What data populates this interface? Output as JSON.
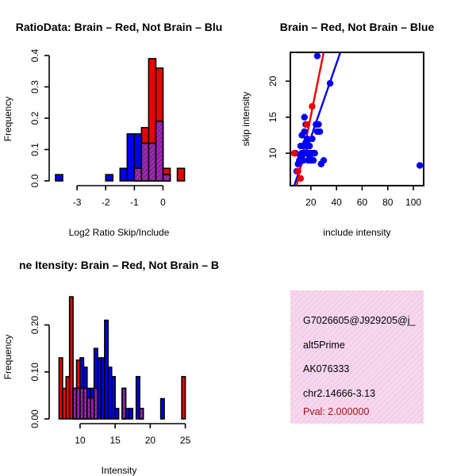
{
  "chart_data": [
    {
      "type": "bar",
      "title": "RatioData: Brain – Red, Not Brain – Blu",
      "xlabel": "Log2 Ratio Skip/Include",
      "ylabel": "Frequency",
      "xlim": [
        -3.75,
        0.9
      ],
      "ylim": [
        0,
        0.4
      ],
      "xticks": [
        "-3",
        "-2",
        "-1",
        "0"
      ],
      "yticks": [
        "0.0",
        "0.1",
        "0.2",
        "0.3",
        "0.4"
      ],
      "bin_width": 0.25,
      "series": [
        {
          "name": "Not Brain",
          "color": "#0000ee",
          "bars": [
            [
              -3.75,
              0.02
            ],
            [
              -2.0,
              0.02
            ],
            [
              -1.5,
              0.04
            ],
            [
              -1.25,
              0.15
            ],
            [
              -1.0,
              0.15
            ],
            [
              -0.75,
              0.12
            ],
            [
              -0.5,
              0.12
            ],
            [
              -0.25,
              0.19
            ],
            [
              0.0,
              0.02
            ]
          ]
        },
        {
          "name": "Brain",
          "color": "#ee0000",
          "bars": [
            [
              -1.0,
              0.04
            ],
            [
              -0.75,
              0.17
            ],
            [
              -0.5,
              0.39
            ],
            [
              -0.25,
              0.36
            ],
            [
              0.0,
              0.04
            ],
            [
              0.5,
              0.04
            ]
          ]
        }
      ]
    },
    {
      "type": "scatter",
      "title": "Brain – Red, Not Brain – Blue",
      "xlabel": "include intensity",
      "ylabel": "skip intensity",
      "xlim": [
        4,
        108
      ],
      "ylim": [
        5.5,
        24
      ],
      "xticks": [
        "20",
        "40",
        "60",
        "80",
        "100"
      ],
      "yticks": [
        "10",
        "15",
        "20"
      ],
      "series": [
        {
          "name": "Not Brain",
          "color": "#0000ee",
          "points": [
            [
              8,
              10
            ],
            [
              9,
              7.5
            ],
            [
              10,
              8.5
            ],
            [
              11,
              9
            ],
            [
              12,
              9.5
            ],
            [
              12,
              11
            ],
            [
              13,
              12.5
            ],
            [
              13,
              10
            ],
            [
              14,
              11
            ],
            [
              14,
              9
            ],
            [
              15,
              15
            ],
            [
              15,
              13
            ],
            [
              16,
              14
            ],
            [
              16,
              10
            ],
            [
              17,
              11
            ],
            [
              17,
              12
            ],
            [
              18,
              10
            ],
            [
              18,
              9
            ],
            [
              19,
              11
            ],
            [
              20,
              10
            ],
            [
              20,
              9
            ],
            [
              21,
              12
            ],
            [
              22,
              10
            ],
            [
              22,
              9
            ],
            [
              23,
              10
            ],
            [
              24,
              14
            ],
            [
              25,
              13
            ],
            [
              26,
              14
            ],
            [
              27,
              13
            ],
            [
              28,
              8.5
            ],
            [
              30,
              9
            ],
            [
              25,
              23.5
            ],
            [
              35,
              19.7
            ],
            [
              105,
              8.3
            ],
            [
              14,
              10
            ],
            [
              16,
              11.5
            ],
            [
              19,
              9.5
            ]
          ]
        },
        {
          "name": "Brain",
          "color": "#ee0000",
          "points": [
            [
              7,
              10
            ],
            [
              10,
              7.5
            ],
            [
              12,
              6.5
            ],
            [
              17,
              14
            ],
            [
              21,
              16.5
            ]
          ]
        }
      ],
      "fit_lines": [
        {
          "name": "Not Brain",
          "color": "#0000ee",
          "from": [
            7,
            5.5
          ],
          "to": [
            43,
            24
          ]
        },
        {
          "name": "Brain",
          "color": "#ee0000",
          "from": [
            9,
            5.5
          ],
          "to": [
            30,
            24
          ]
        }
      ]
    },
    {
      "type": "bar",
      "title": "ne Itensity: Brain – Red, Not Brain – B",
      "xlabel": "Intensity",
      "ylabel": "Frequency",
      "xlim": [
        6.5,
        25.5
      ],
      "ylim": [
        0,
        0.25
      ],
      "xticks": [
        "10",
        "15",
        "20",
        "25"
      ],
      "yticks": [
        "0.00",
        "0.10",
        "0.20"
      ],
      "bin_width": 0.5,
      "series": [
        {
          "name": "Not Brain",
          "color": "#0000ee",
          "bars": [
            [
              9.0,
              0.065
            ],
            [
              9.5,
              0.065
            ],
            [
              10.0,
              0.13
            ],
            [
              10.5,
              0.11
            ],
            [
              11.0,
              0.065
            ],
            [
              11.5,
              0.065
            ],
            [
              12.0,
              0.15
            ],
            [
              12.5,
              0.13
            ],
            [
              13.0,
              0.13
            ],
            [
              13.5,
              0.21
            ],
            [
              14.0,
              0.11
            ],
            [
              14.5,
              0.09
            ],
            [
              15.0,
              0.022
            ],
            [
              16.0,
              0.065
            ],
            [
              16.5,
              0.022
            ],
            [
              17.0,
              0.022
            ],
            [
              18.0,
              0.09
            ],
            [
              18.5,
              0.022
            ],
            [
              21.5,
              0.043
            ]
          ]
        },
        {
          "name": "Brain",
          "color": "#ee0000",
          "bars": [
            [
              7.0,
              0.13
            ],
            [
              7.5,
              0.065
            ],
            [
              8.0,
              0.09
            ],
            [
              8.5,
              0.26
            ],
            [
              9.0,
              0.065
            ],
            [
              9.5,
              0.125
            ],
            [
              10.0,
              0.065
            ],
            [
              10.5,
              0.065
            ],
            [
              11.0,
              0.045
            ],
            [
              11.5,
              0.045
            ],
            [
              12.0,
              0.065
            ],
            [
              16.0,
              0.065
            ],
            [
              18.5,
              0.022
            ],
            [
              24.5,
              0.09
            ]
          ]
        }
      ]
    }
  ],
  "info_box": {
    "lines": [
      "G7026605@J929205@j_",
      "alt5Prime",
      "AK076333",
      "chr2.14666-3.13"
    ],
    "pval": "Pval: 2.000000"
  }
}
